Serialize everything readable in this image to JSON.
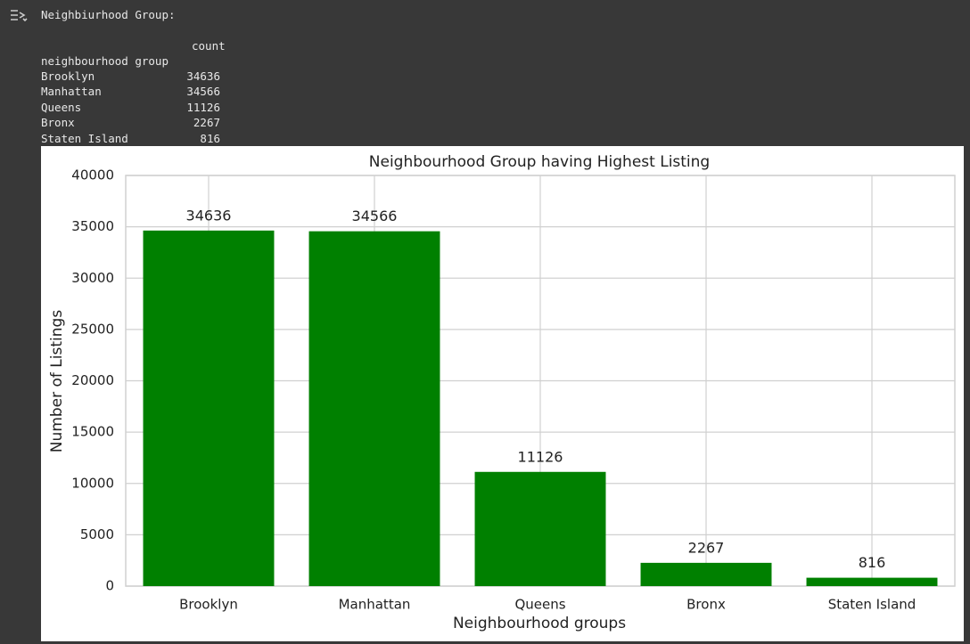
{
  "output": {
    "header": "Neighbiurhood Group:",
    "column_header": "count",
    "index_name": "neighbourhood group"
  },
  "chart_data": {
    "type": "bar",
    "title": "Neighbourhood Group having Highest Listing",
    "x_label": "Neighbourhood groups",
    "y_label": "Number of Listings",
    "categories": [
      "Brooklyn",
      "Manhattan",
      "Queens",
      "Bronx",
      "Staten Island"
    ],
    "values": [
      34636,
      34566,
      11126,
      2267,
      816
    ],
    "color": "#008000",
    "ylim": [
      0,
      40000
    ],
    "yticks": [
      0,
      5000,
      10000,
      15000,
      20000,
      25000,
      30000,
      35000,
      40000
    ],
    "grid": true
  }
}
